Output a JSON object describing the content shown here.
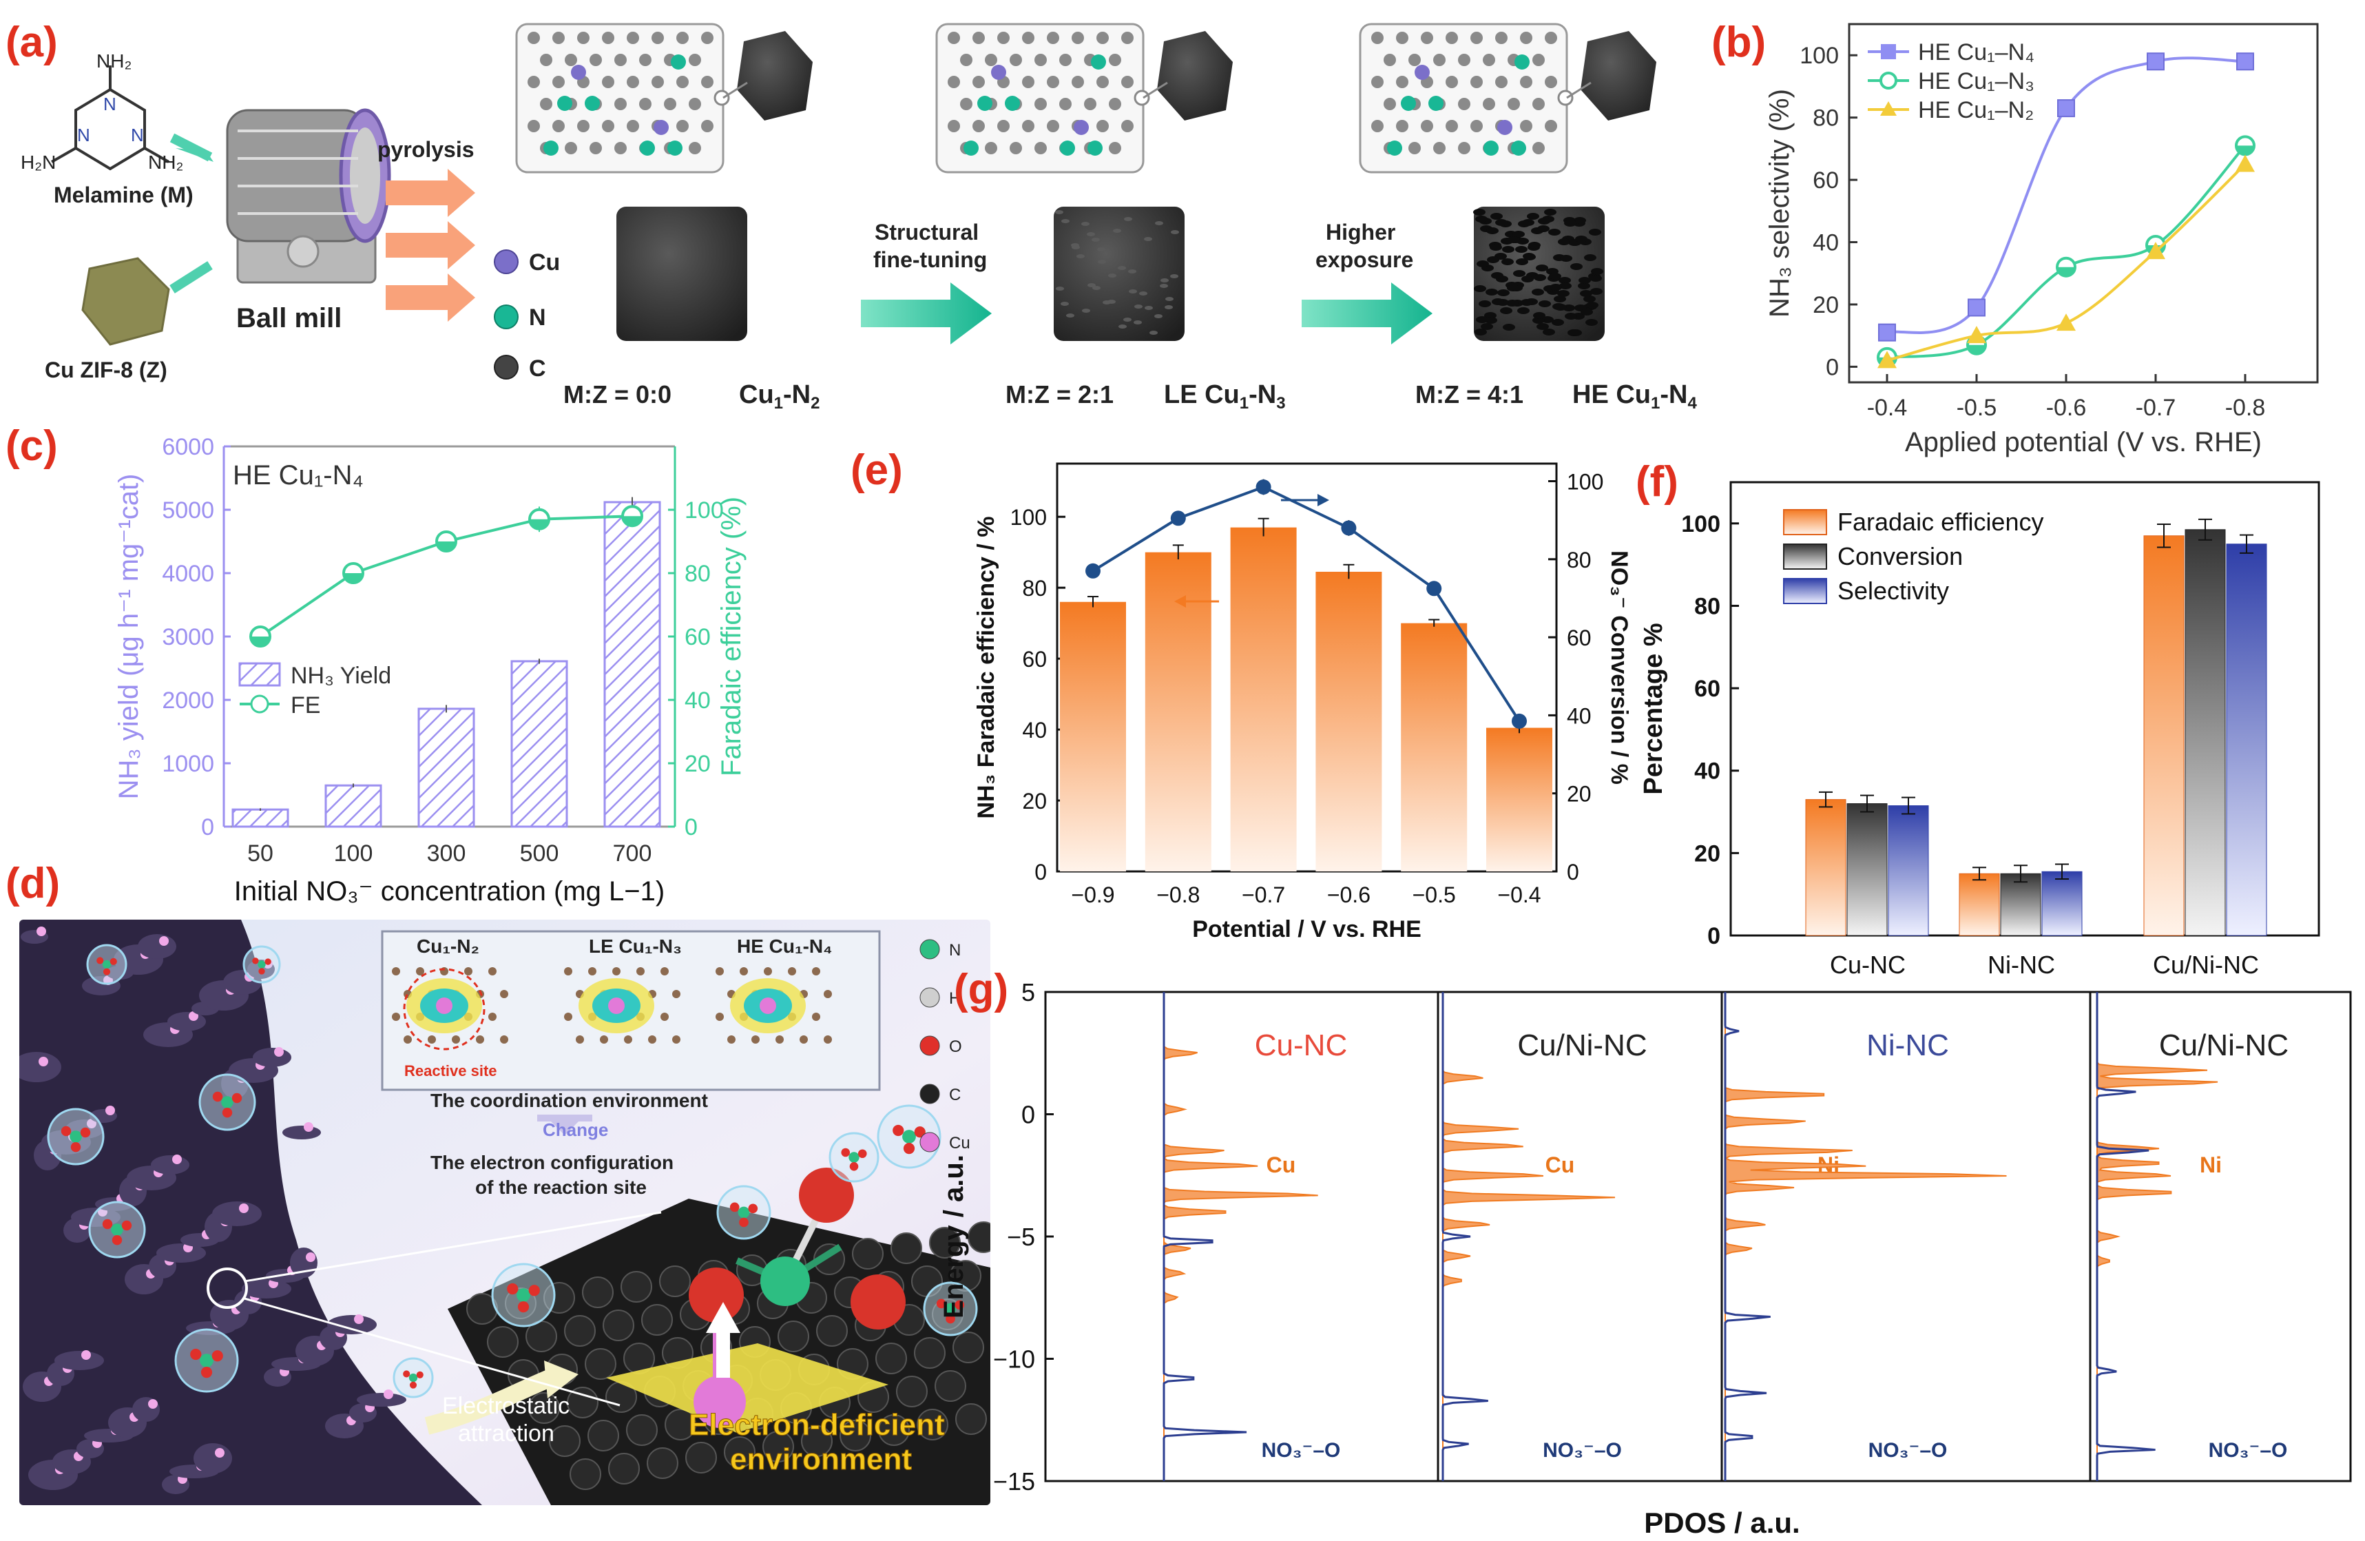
{
  "panel_labels": {
    "a": "(a)",
    "b": "(b)",
    "c": "(c)",
    "d": "(d)",
    "e": "(e)",
    "f": "(f)",
    "g": "(g)"
  },
  "panel_a": {
    "melamine_label": "Melamine (M)",
    "zif_label": "Cu ZIF-8 (Z)",
    "ball_mill_label": "Ball mill",
    "pyrolysis_label": "pyrolysis",
    "legend": {
      "cu": "Cu",
      "n": "N",
      "c": "C"
    },
    "step1_label_line1": "Structural",
    "step1_label_line2": "fine-tuning",
    "step2_label_line1": "Higher",
    "step2_label_line2": "exposure",
    "ratio1": "M:Z = 0:0",
    "cat1_main": "Cu",
    "cat1_sub1": "1",
    "cat1_mid": "-N",
    "cat1_sub2": "2",
    "ratio2": "M:Z = 2:1",
    "cat2_main": "LE Cu",
    "cat2_sub1": "1",
    "cat2_mid": "-N",
    "cat2_sub2": "3",
    "ratio3": "M:Z = 4:1",
    "cat3_main": "HE Cu",
    "cat3_sub1": "1",
    "cat3_mid": "-N",
    "cat3_sub2": "4",
    "colors": {
      "cu": "#7b6fc9",
      "n": "#19b795",
      "c": "#4a4a4a",
      "arrow": "#19c29c",
      "pyro_arrow": "#f9a27a"
    }
  },
  "panel_b": {
    "chart_data": {
      "type": "line",
      "x": [
        -0.4,
        -0.5,
        -0.6,
        -0.7,
        -0.8
      ],
      "xticklabels": [
        "-0.4",
        "-0.5",
        "-0.6",
        "-0.7",
        "-0.8"
      ],
      "xlabel": "Applied potential (V vs. RHE)",
      "ylabel": "NH₃ selectivity (%)",
      "ylim": [
        -5,
        110
      ],
      "yticks": [
        0,
        20,
        40,
        60,
        80,
        100
      ],
      "series": [
        {
          "name": "HE Cu₁–N₄",
          "values": [
            11,
            19,
            83,
            98,
            98
          ],
          "color": "#8f8ef2",
          "marker": "square"
        },
        {
          "name": "HE Cu₁–N₃",
          "values": [
            3,
            7,
            32,
            39,
            71
          ],
          "color": "#3ccf9a",
          "marker": "circle"
        },
        {
          "name": "HE Cu₁–N₂",
          "values": [
            2,
            10,
            14,
            37,
            65
          ],
          "color": "#f3cc3a",
          "marker": "triangle"
        }
      ]
    }
  },
  "panel_c": {
    "inset_title": "HE Cu₁-N₄",
    "chart_data": {
      "type": "bar",
      "categories": [
        "50",
        "100",
        "300",
        "500",
        "700"
      ],
      "xlabel": "Initial NO₃⁻  concentration (mg L−1)",
      "ylabel_left": "NH₃ yield (μg h⁻¹ mg⁻¹cat)",
      "ylabel_right": "Faradaic efficiency (%)",
      "ylim_left": [
        0,
        6000
      ],
      "yticks_left": [
        0,
        1000,
        2000,
        3000,
        4000,
        5000,
        6000
      ],
      "ylim_right": [
        0,
        120
      ],
      "yticks_right": [
        0,
        20,
        40,
        60,
        80,
        100
      ],
      "series": [
        {
          "name": "NH₃ Yield",
          "axis": "left",
          "values": [
            270,
            650,
            1860,
            2610,
            5120
          ],
          "errors": [
            20,
            30,
            60,
            40,
            80
          ],
          "color": "#9b8ff0"
        },
        {
          "name": "FE",
          "axis": "right",
          "values": [
            60,
            80,
            90,
            97,
            98
          ],
          "errors": [
            1,
            1,
            1,
            4,
            2
          ],
          "color": "#3ccf9a"
        }
      ]
    }
  },
  "panel_d": {
    "inset_labels": {
      "s1": "Cu₁-N₂",
      "s2": "LE Cu₁-N₃",
      "s3": "HE Cu₁-N₄",
      "reactive": "Reactive site"
    },
    "text_coordination": "The coordination environment",
    "text_change": "Change",
    "text_config_line1": "The electron configuration",
    "text_config_line2": "of the reaction site",
    "text_electrostatic_line1": "Electrostatic",
    "text_electrostatic_line2": "attraction",
    "text_deficient_line1": "Electron-deficient",
    "text_deficient_line2": "environment",
    "legend": [
      "N",
      "H",
      "O",
      "C",
      "Cu"
    ],
    "legend_colors": [
      "#2dbe82",
      "#cfcfcf",
      "#e0302a",
      "#222222",
      "#e27ad8"
    ]
  },
  "panel_e": {
    "chart_data": {
      "type": "bar",
      "categories": [
        "−0.9",
        "−0.8",
        "−0.7",
        "−0.6",
        "−0.5",
        "−0.4"
      ],
      "xlabel": "Potential / V vs. RHE",
      "ylabel_left": "NH₃ Faradaic efficiency / %",
      "ylabel_right": "NO₃⁻ Conversion / %",
      "ylim_left": [
        0,
        115
      ],
      "yticks_left": [
        0,
        20,
        40,
        60,
        80,
        100
      ],
      "ylim_right": [
        0,
        104.5
      ],
      "yticks_right": [
        0,
        20,
        40,
        60,
        80,
        100
      ],
      "series": [
        {
          "name": "NH₃ Faradaic efficiency",
          "axis": "left",
          "values": [
            76,
            90,
            97,
            84.5,
            70,
            40.5
          ],
          "errors": [
            1.5,
            2,
            2.5,
            2,
            1,
            1.5
          ]
        },
        {
          "name": "NO₃⁻ Conversion",
          "axis": "right",
          "values": [
            77,
            90.5,
            98.5,
            88,
            72.5,
            38.5
          ],
          "errors": [
            1,
            1.5,
            2,
            2,
            1.5,
            1.5
          ]
        }
      ]
    }
  },
  "panel_f": {
    "chart_data": {
      "type": "bar",
      "categories": [
        "Cu-NC",
        "Ni-NC",
        "Cu/Ni-NC"
      ],
      "ylabel": "Percentage %",
      "ylim": [
        0,
        110
      ],
      "yticks": [
        0,
        20,
        40,
        60,
        80,
        100
      ],
      "series": [
        {
          "name": "Faradaic efficiency",
          "values": [
            33,
            15,
            97
          ],
          "errors": [
            1.8,
            1.5,
            2.8
          ]
        },
        {
          "name": "Conversion",
          "values": [
            32,
            15,
            98.5
          ],
          "errors": [
            2,
            2,
            2.5
          ]
        },
        {
          "name": "Selectivity",
          "values": [
            31.5,
            15.5,
            95
          ],
          "errors": [
            2,
            1.8,
            2.2
          ]
        }
      ]
    }
  },
  "panel_g": {
    "chart_data": {
      "type": "line",
      "ylabel": "Energy / a.u.",
      "xlabel": "PDOS / a.u.",
      "ylim": [
        -15,
        5
      ],
      "yticks": [
        5,
        0,
        -5,
        -10,
        -15
      ],
      "subpanels": [
        {
          "title": "Cu-NC",
          "title_color": "#e84a3a",
          "metal": "Cu",
          "ads": "NO₃⁻–O"
        },
        {
          "title": "Cu/Ni-NC",
          "title_color": "#222222",
          "metal": "Cu",
          "ads": "NO₃⁻–O"
        },
        {
          "title": "Ni-NC",
          "title_color": "#3b4a9a",
          "metal": "Ni",
          "ads": "NO₃⁻–O"
        },
        {
          "title": "Cu/Ni-NC",
          "title_color": "#222222",
          "metal": "Ni",
          "ads": "NO₃⁻–O"
        }
      ]
    }
  }
}
